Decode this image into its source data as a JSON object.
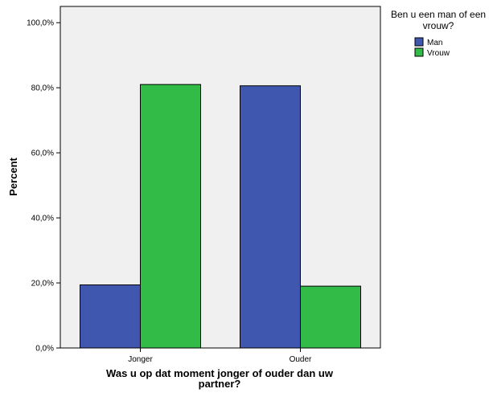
{
  "chart_data": {
    "type": "bar",
    "categories": [
      "Jonger",
      "Ouder"
    ],
    "series": [
      {
        "name": "Man",
        "values": [
          19.4,
          80.6
        ],
        "color": "#3f57ae"
      },
      {
        "name": "Vrouw",
        "values": [
          81.0,
          19.0
        ],
        "color": "#32bb47"
      }
    ],
    "ylim": [
      0,
      105
    ],
    "yticks": [
      0,
      20,
      40,
      60,
      80,
      100
    ],
    "ytick_labels": [
      "0,0%",
      "20,0%",
      "40,0%",
      "60,0%",
      "80,0%",
      "100,0%"
    ],
    "ylabel": "Percent",
    "xlabel_lines": [
      "Was u op dat moment jonger of ouder dan uw",
      "partner?"
    ],
    "legend_title_lines": [
      "Ben u een man of een",
      "vrouw?"
    ],
    "legend_position": "top-right",
    "plot_background": "#f0f0f0",
    "grid": false
  }
}
